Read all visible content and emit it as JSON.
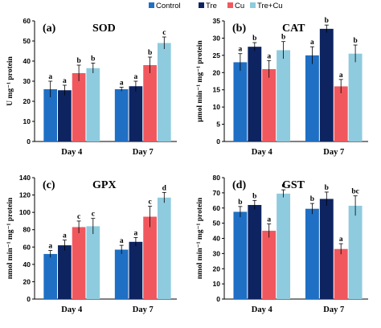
{
  "colors": {
    "Control": "#1f6fc4",
    "Tre": "#0d2461",
    "Cu": "#f0585e",
    "Tre+Cu": "#8fcbde"
  },
  "legend": [
    "Control",
    "Tre",
    "Cu",
    "Tre+Cu"
  ],
  "chart_data": [
    {
      "type": "bar",
      "panel": "(a)",
      "title": "SOD",
      "ylabel": "U mg⁻¹ protein",
      "ylim": [
        0,
        60
      ],
      "yticks": [
        0,
        10,
        20,
        30,
        40,
        50,
        60
      ],
      "categories": [
        "Day 4",
        "Day 7"
      ],
      "series": [
        {
          "name": "Control",
          "values": [
            26,
            26
          ],
          "errors": [
            4,
            1
          ],
          "labels": [
            "a",
            "a"
          ]
        },
        {
          "name": "Tre",
          "values": [
            25.5,
            27.5
          ],
          "errors": [
            2.5,
            2.5
          ],
          "labels": [
            "a",
            "a"
          ]
        },
        {
          "name": "Cu",
          "values": [
            34,
            38
          ],
          "errors": [
            4,
            4
          ],
          "labels": [
            "b",
            "b"
          ]
        },
        {
          "name": "Tre+Cu",
          "values": [
            36.5,
            49
          ],
          "errors": [
            2.5,
            3
          ],
          "labels": [
            "b",
            "c"
          ]
        }
      ]
    },
    {
      "type": "bar",
      "panel": "(b)",
      "title": "CAT",
      "ylabel": "μmol min⁻¹ mg⁻¹ protein",
      "ylim": [
        0,
        35
      ],
      "yticks": [
        0,
        5,
        10,
        15,
        20,
        25,
        30,
        35
      ],
      "categories": [
        "Day 4",
        "Day 7"
      ],
      "series": [
        {
          "name": "Control",
          "values": [
            23,
            25
          ],
          "errors": [
            2.5,
            2.5
          ],
          "labels": [
            "a",
            "a"
          ]
        },
        {
          "name": "Tre",
          "values": [
            27.5,
            32.7
          ],
          "errors": [
            1.2,
            1.1
          ],
          "labels": [
            "b",
            "b"
          ]
        },
        {
          "name": "Cu",
          "values": [
            21,
            16
          ],
          "errors": [
            2.5,
            2
          ],
          "labels": [
            "a",
            "a"
          ]
        },
        {
          "name": "Tre+Cu",
          "values": [
            26.5,
            25.5
          ],
          "errors": [
            2.5,
            2.5
          ],
          "labels": [
            "b",
            "b"
          ]
        }
      ]
    },
    {
      "type": "bar",
      "panel": "(c)",
      "title": "GPX",
      "ylabel": "nmol min⁻¹ mg⁻¹ protein",
      "ylim": [
        0,
        140
      ],
      "yticks": [
        0,
        20,
        40,
        60,
        80,
        100,
        120,
        140
      ],
      "categories": [
        "Day 4",
        "Day 7"
      ],
      "series": [
        {
          "name": "Control",
          "values": [
            52,
            57
          ],
          "errors": [
            4,
            5
          ],
          "labels": [
            "a",
            "a"
          ]
        },
        {
          "name": "Tre",
          "values": [
            62,
            66
          ],
          "errors": [
            6,
            5
          ],
          "labels": [
            "a",
            "a"
          ]
        },
        {
          "name": "Cu",
          "values": [
            83,
            95
          ],
          "errors": [
            7,
            12
          ],
          "labels": [
            "c",
            "c"
          ]
        },
        {
          "name": "Tre+Cu",
          "values": [
            84,
            117
          ],
          "errors": [
            9,
            6
          ],
          "labels": [
            "c",
            "d"
          ]
        }
      ]
    },
    {
      "type": "bar",
      "panel": "(d)",
      "title": "GST",
      "ylabel": "nmol min⁻¹ mg⁻¹ protein",
      "ylim": [
        0,
        80
      ],
      "yticks": [
        0,
        10,
        20,
        30,
        40,
        50,
        60,
        70,
        80
      ],
      "categories": [
        "Day 4",
        "Day 7"
      ],
      "series": [
        {
          "name": "Control",
          "values": [
            57.5,
            59.5
          ],
          "errors": [
            3.5,
            3.5
          ],
          "labels": [
            "b",
            "b"
          ]
        },
        {
          "name": "Tre",
          "values": [
            62,
            66
          ],
          "errors": [
            3,
            4.5
          ],
          "labels": [
            "b",
            "b"
          ]
        },
        {
          "name": "Cu",
          "values": [
            45,
            33
          ],
          "errors": [
            4.5,
            3.5
          ],
          "labels": [
            "a",
            "a"
          ]
        },
        {
          "name": "Tre+Cu",
          "values": [
            69.5,
            61.5
          ],
          "errors": [
            2.5,
            6.5
          ],
          "labels": [
            "c",
            "bc"
          ]
        }
      ]
    }
  ]
}
